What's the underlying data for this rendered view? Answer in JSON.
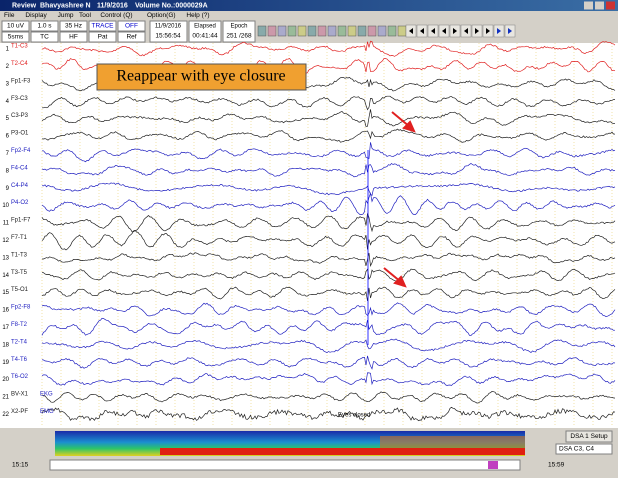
{
  "title_bar": {
    "app": "Review",
    "patient": "Bhavyashree N",
    "date": "11/9/2016",
    "volume": "Volume No.:0000029A"
  },
  "menu": [
    "File",
    "Display",
    "Jump",
    "Tool",
    "Control (Q)",
    "Option(G)",
    "Help (?)"
  ],
  "settings": [
    {
      "top": "10 uV",
      "bottom": "5sms"
    },
    {
      "top": "1.0 s",
      "bottom": "TC"
    },
    {
      "top": "35 Hz",
      "bottom": "HF"
    },
    {
      "top": "TRACE",
      "bottom": "Pat"
    },
    {
      "top": "OFF",
      "bottom": "Ref"
    }
  ],
  "clock": {
    "date": "11/9/2016",
    "time": "15:56:54",
    "elapsed_label": "Elapsed",
    "elapsed": "00:41:44",
    "epoch_label": "Epoch",
    "epoch": "251 /268"
  },
  "channels": [
    {
      "number": "1",
      "label": "T1-C3"
    },
    {
      "number": "2",
      "label": "T2-C4"
    },
    {
      "number": "3",
      "label": "Fp1-F3"
    },
    {
      "number": "4",
      "label": "F3-C3"
    },
    {
      "number": "5",
      "label": "C3-P3"
    },
    {
      "number": "6",
      "label": "P3-O1"
    },
    {
      "number": "7",
      "label": "Fp2-F4"
    },
    {
      "number": "8",
      "label": "F4-C4"
    },
    {
      "number": "9",
      "label": "C4-P4"
    },
    {
      "number": "10",
      "label": "P4-O2"
    },
    {
      "number": "11",
      "label": "Fp1-F7"
    },
    {
      "number": "12",
      "label": "F7-T1"
    },
    {
      "number": "13",
      "label": "T1-T3"
    },
    {
      "number": "14",
      "label": "T3-T5"
    },
    {
      "number": "15",
      "label": "T5-O1"
    },
    {
      "number": "16",
      "label": "Fp2-F8"
    },
    {
      "number": "17",
      "label": "F8-T2"
    },
    {
      "number": "18",
      "label": "T2-T4"
    },
    {
      "number": "19",
      "label": "T4-T6"
    },
    {
      "number": "20",
      "label": "T6-O2"
    },
    {
      "number": "21",
      "label": "BV-X1",
      "tag": "EKG"
    },
    {
      "number": "22",
      "label": "X2-PF",
      "tag": "EMG"
    }
  ],
  "annotations": {
    "callout": "Reappear with eye closure",
    "event": "Eyes closed"
  },
  "dsa": {
    "setup": "DSA 1 Setup",
    "montage": "DSA C3, C4"
  },
  "timeline": {
    "start": "15:15",
    "end": "15:59"
  }
}
